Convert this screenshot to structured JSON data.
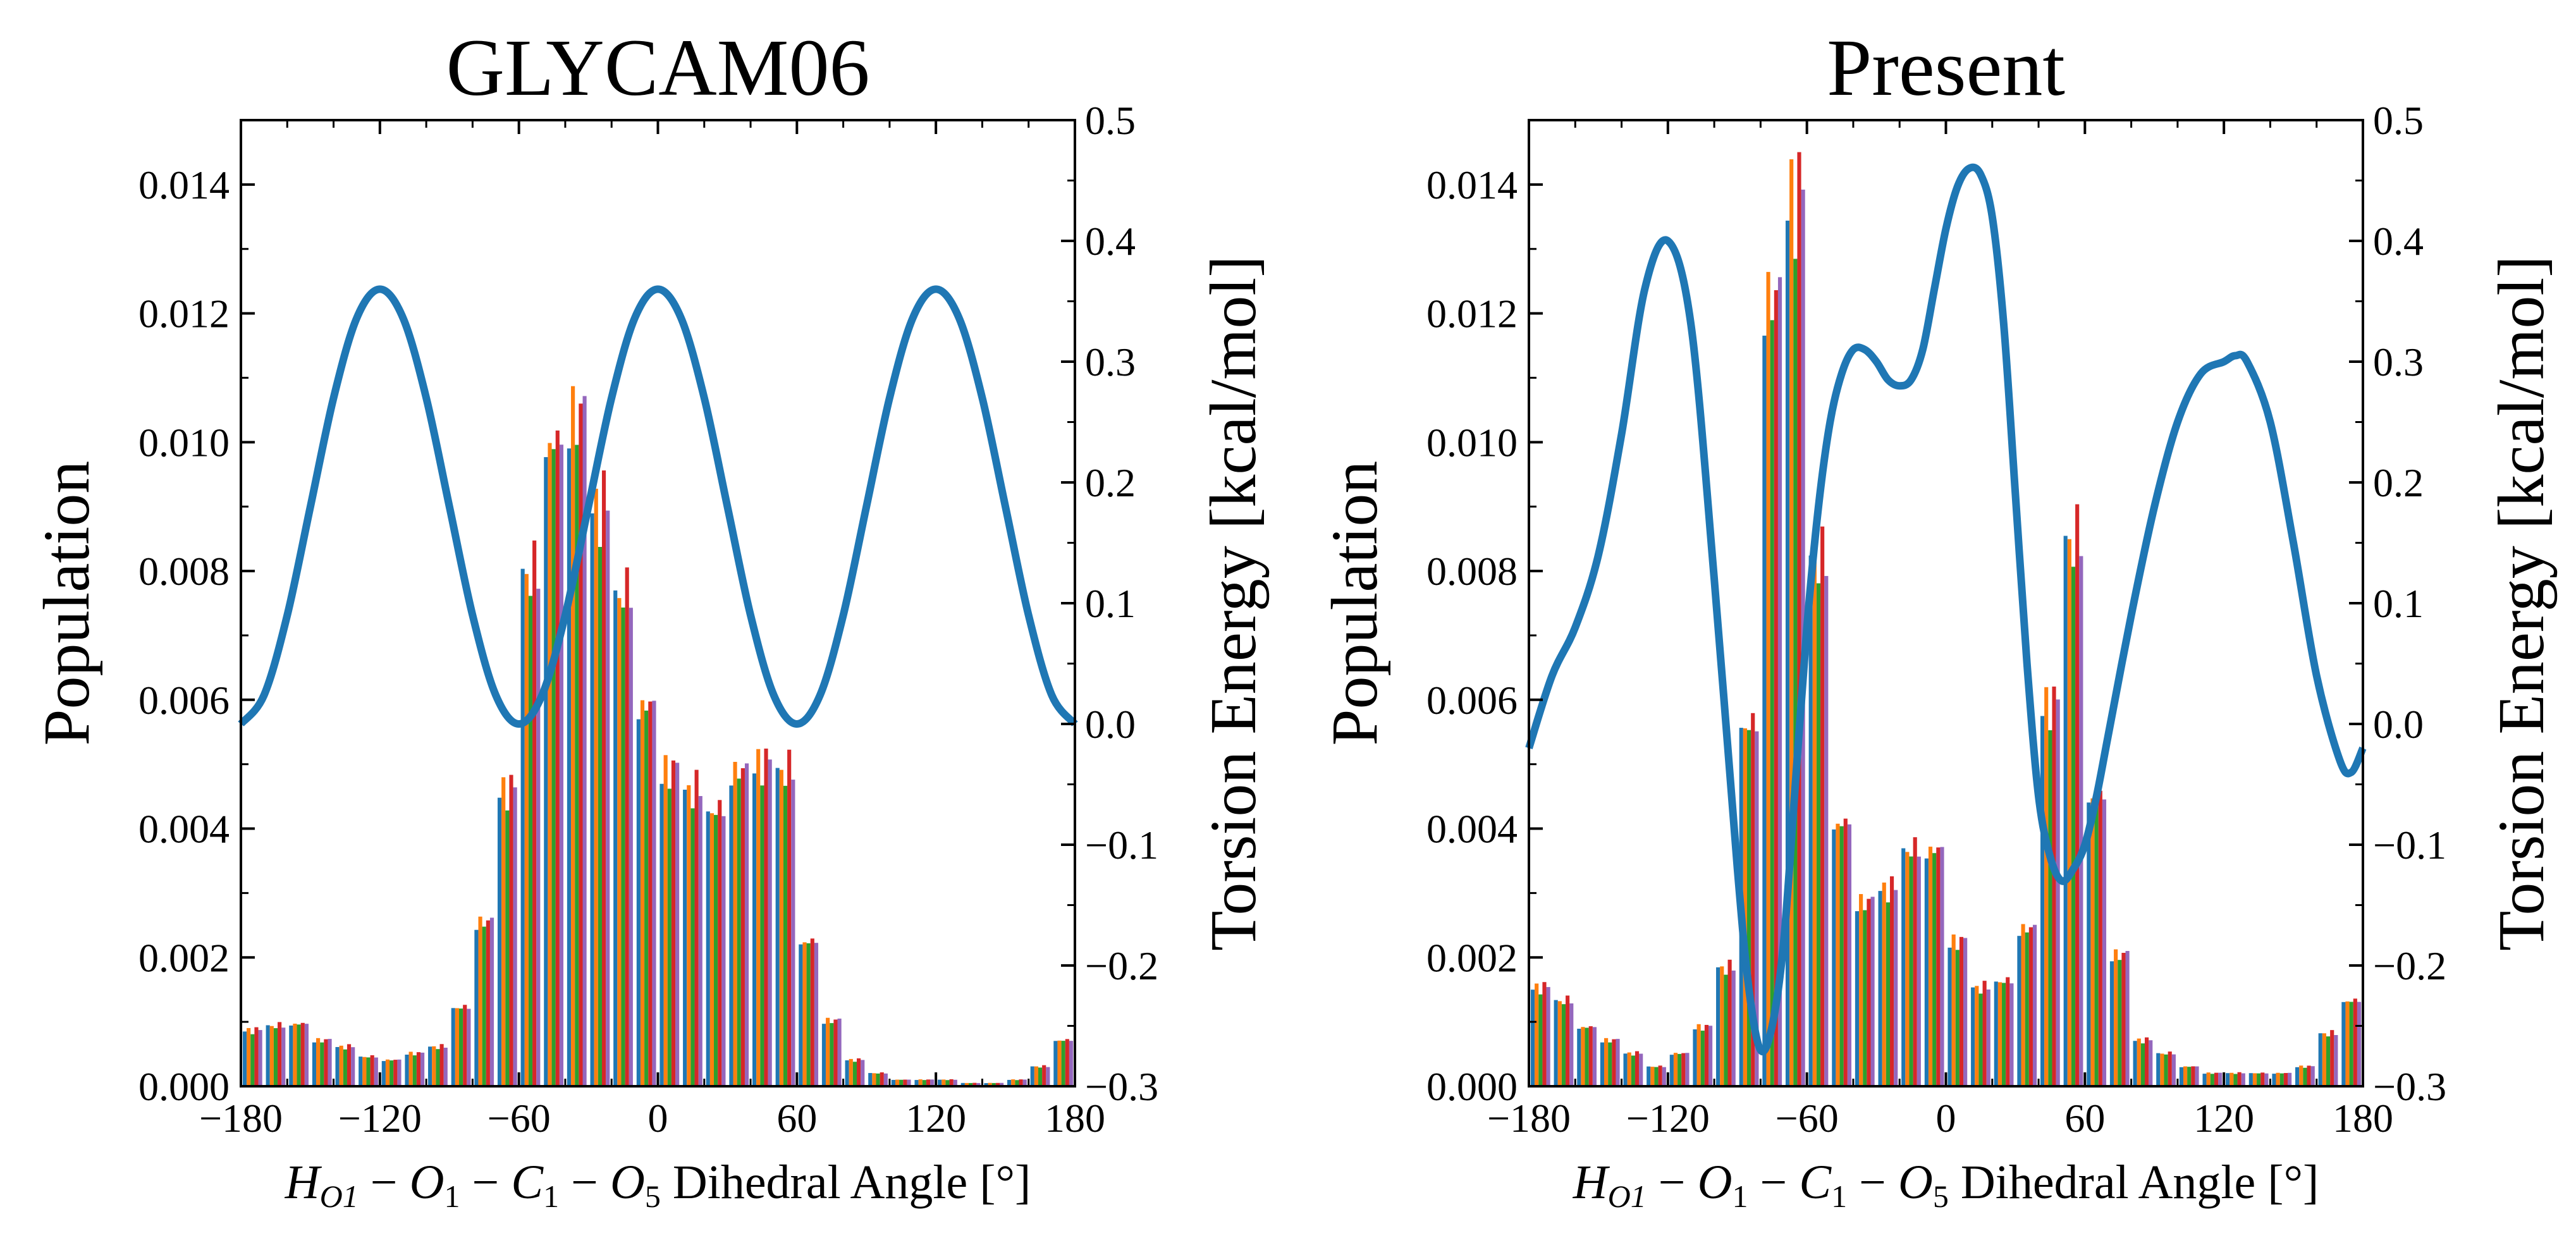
{
  "chart_data": [
    {
      "type": "bar",
      "title": "GLYCAM06",
      "xlabel": {
        "h": "H",
        "h_sub": "O1",
        "o1": "O",
        "o1_sub": "1",
        "c1": "C",
        "c1_sub": "1",
        "o5": "O",
        "o5_sub": "5",
        "minus": "−",
        "suffix": " Dihedral Angle [°]"
      },
      "ylabel": "Population",
      "y2label": "Torsion Energy [kcal/mol]",
      "xlim": [
        -180,
        180
      ],
      "ylim": [
        0,
        0.015
      ],
      "y2lim": [
        -0.3,
        0.5
      ],
      "xticks": [
        -180,
        -120,
        -60,
        0,
        60,
        120,
        180
      ],
      "xtick_labels": [
        "−180",
        "−120",
        "−60",
        "0",
        "60",
        "120",
        "180"
      ],
      "yticks": [
        0,
        0.002,
        0.004,
        0.006,
        0.008,
        0.01,
        0.012,
        0.014
      ],
      "ytick_labels": [
        "0.000",
        "0.002",
        "0.004",
        "0.006",
        "0.008",
        "0.010",
        "0.012",
        "0.014"
      ],
      "y2ticks": [
        -0.3,
        -0.2,
        -0.1,
        0.0,
        0.1,
        0.2,
        0.3,
        0.4,
        0.5
      ],
      "y2tick_labels": [
        "−0.3",
        "−0.2",
        "−0.1",
        "0.0",
        "0.1",
        "0.2",
        "0.3",
        "0.4",
        "0.5"
      ],
      "series_colors": [
        "#1f77b4",
        "#ff7f0e",
        "#2ca02c",
        "#d62728",
        "#9467bd"
      ],
      "histogram": {
        "bin_width": 10,
        "bin_centers": [
          -175,
          -165,
          -155,
          -145,
          -135,
          -125,
          -115,
          -105,
          -95,
          -85,
          -75,
          -65,
          -55,
          -45,
          -35,
          -25,
          -15,
          -5,
          5,
          15,
          25,
          35,
          45,
          55,
          65,
          75,
          85,
          95,
          105,
          115,
          125,
          135,
          145,
          155,
          165,
          175
        ],
        "population": [
          0.00085,
          0.00092,
          0.00095,
          0.0007,
          0.0006,
          0.00045,
          0.0004,
          0.0005,
          0.0006,
          0.0012,
          0.0025,
          0.0045,
          0.0078,
          0.0098,
          0.0102,
          0.0088,
          0.0075,
          0.0058,
          0.0048,
          0.0045,
          0.0042,
          0.0048,
          0.0049,
          0.0048,
          0.0022,
          0.001,
          0.0004,
          0.0002,
          0.0001,
          0.0001,
          0.0001,
          5e-05,
          5e-05,
          0.0001,
          0.0003,
          0.0007
        ],
        "series_multipliers": [
          1.0,
          1.04,
          0.98,
          1.06,
          1.02
        ]
      },
      "torsion_energy": {
        "x": [
          -180,
          -170,
          -160,
          -150,
          -140,
          -130,
          -120,
          -110,
          -100,
          -90,
          -80,
          -70,
          -60,
          -50,
          -40,
          -30,
          -20,
          -10,
          0,
          10,
          20,
          30,
          40,
          50,
          60,
          70,
          80,
          90,
          100,
          110,
          120,
          130,
          140,
          150,
          160,
          170,
          180
        ],
        "y": [
          0.0,
          0.0239,
          0.09,
          0.18,
          0.27,
          0.3361,
          0.36,
          0.3361,
          0.27,
          0.18,
          0.09,
          0.0239,
          0.0,
          0.0239,
          0.09,
          0.18,
          0.27,
          0.3361,
          0.36,
          0.3361,
          0.27,
          0.18,
          0.09,
          0.0239,
          0.0,
          0.0239,
          0.09,
          0.18,
          0.27,
          0.3361,
          0.36,
          0.3361,
          0.27,
          0.18,
          0.09,
          0.0239,
          0.0
        ],
        "color": "#1f77b4"
      }
    },
    {
      "type": "bar",
      "title": "Present",
      "xlabel": {
        "h": "H",
        "h_sub": "O1",
        "o1": "O",
        "o1_sub": "1",
        "c1": "C",
        "c1_sub": "1",
        "o5": "O",
        "o5_sub": "5",
        "minus": "−",
        "suffix": " Dihedral Angle [°]"
      },
      "ylabel": "Population",
      "y2label": "Torsion Energy [kcal/mol]",
      "xlim": [
        -180,
        180
      ],
      "ylim": [
        0,
        0.015
      ],
      "y2lim": [
        -0.3,
        0.5
      ],
      "xticks": [
        -180,
        -120,
        -60,
        0,
        60,
        120,
        180
      ],
      "xtick_labels": [
        "−180",
        "−120",
        "−60",
        "0",
        "60",
        "120",
        "180"
      ],
      "yticks": [
        0,
        0.002,
        0.004,
        0.006,
        0.008,
        0.01,
        0.012,
        0.014
      ],
      "ytick_labels": [
        "0.000",
        "0.002",
        "0.004",
        "0.006",
        "0.008",
        "0.010",
        "0.012",
        "0.014"
      ],
      "y2ticks": [
        -0.3,
        -0.2,
        -0.1,
        0.0,
        0.1,
        0.2,
        0.3,
        0.4,
        0.5
      ],
      "y2tick_labels": [
        "−0.3",
        "−0.2",
        "−0.1",
        "0.0",
        "0.1",
        "0.2",
        "0.3",
        "0.4",
        "0.5"
      ],
      "series_colors": [
        "#1f77b4",
        "#ff7f0e",
        "#2ca02c",
        "#d62728",
        "#9467bd"
      ],
      "histogram": {
        "bin_width": 10,
        "bin_centers": [
          -175,
          -165,
          -155,
          -145,
          -135,
          -125,
          -115,
          -105,
          -95,
          -85,
          -75,
          -65,
          -55,
          -45,
          -35,
          -25,
          -15,
          -5,
          5,
          15,
          25,
          35,
          45,
          55,
          65,
          75,
          85,
          95,
          105,
          115,
          125,
          135,
          145,
          155,
          165,
          175
        ],
        "population": [
          0.0015,
          0.0013,
          0.0009,
          0.0007,
          0.0005,
          0.0003,
          0.0005,
          0.0009,
          0.0018,
          0.0055,
          0.012,
          0.0135,
          0.008,
          0.004,
          0.0028,
          0.003,
          0.0036,
          0.0036,
          0.0022,
          0.0015,
          0.0016,
          0.0024,
          0.0058,
          0.0083,
          0.0044,
          0.002,
          0.0007,
          0.0005,
          0.0003,
          0.0002,
          0.0002,
          0.0002,
          0.0002,
          0.0003,
          0.0008,
          0.0013
        ],
        "series_multipliers": [
          1.0,
          1.04,
          0.98,
          1.06,
          1.02
        ]
      },
      "torsion_energy": {
        "x": [
          -180,
          -170,
          -160,
          -150,
          -140,
          -130,
          -120,
          -110,
          -100,
          -90,
          -85,
          -80,
          -75,
          -70,
          -65,
          -60,
          -55,
          -50,
          -45,
          -40,
          -35,
          -30,
          -25,
          -20,
          -15,
          -10,
          -5,
          0,
          5,
          10,
          15,
          20,
          25,
          30,
          35,
          40,
          45,
          50,
          55,
          60,
          65,
          70,
          80,
          90,
          100,
          110,
          120,
          125,
          130,
          140,
          150,
          160,
          170,
          175,
          180
        ],
        "y": [
          -0.02,
          0.04,
          0.08,
          0.14,
          0.24,
          0.36,
          0.4,
          0.33,
          0.12,
          -0.12,
          -0.22,
          -0.27,
          -0.25,
          -0.18,
          -0.05,
          0.08,
          0.18,
          0.25,
          0.29,
          0.31,
          0.31,
          0.3,
          0.285,
          0.28,
          0.285,
          0.31,
          0.36,
          0.41,
          0.445,
          0.46,
          0.455,
          0.42,
          0.33,
          0.19,
          0.05,
          -0.06,
          -0.11,
          -0.13,
          -0.12,
          -0.1,
          -0.06,
          -0.01,
          0.09,
          0.18,
          0.25,
          0.29,
          0.3,
          0.305,
          0.3,
          0.25,
          0.15,
          0.04,
          -0.03,
          -0.04,
          -0.02
        ],
        "color": "#1f77b4"
      }
    }
  ]
}
